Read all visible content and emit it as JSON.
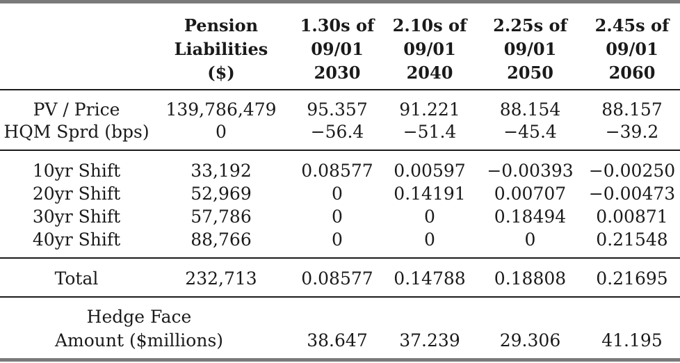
{
  "header": {
    "c1": [
      "Pension",
      "Liabilities",
      "($)"
    ],
    "c2": [
      "1.30s of",
      "09/01",
      "2030"
    ],
    "c3": [
      "2.10s of",
      "09/01",
      "2040"
    ],
    "c4": [
      "2.25s of",
      "09/01",
      "2050"
    ],
    "c5": [
      "2.45s of",
      "09/01",
      "2060"
    ]
  },
  "rows": {
    "pv": [
      "PV / Price",
      "139,786,479",
      "95.357",
      "91.221",
      "88.154",
      "88.157"
    ],
    "hqm": [
      "HQM Sprd (bps)",
      "0",
      "−56.4",
      "−51.4",
      "−45.4",
      "−39.2"
    ],
    "s10": [
      "10yr Shift",
      "33,192",
      "0.08577",
      "0.00597",
      "−0.00393",
      "−0.00250"
    ],
    "s20": [
      "20yr Shift",
      "52,969",
      "0",
      "0.14191",
      "0.00707",
      "−0.00473"
    ],
    "s30": [
      "30yr Shift",
      "57,786",
      "0",
      "0",
      "0.18494",
      "0.00871"
    ],
    "s40": [
      "40yr Shift",
      "88,766",
      "0",
      "0",
      "0",
      "0.21548"
    ],
    "total": [
      "Total",
      "232,713",
      "0.08577",
      "0.14788",
      "0.18808",
      "0.21695"
    ],
    "hedge_label": [
      "Hedge Face",
      "Amount ($millions)"
    ],
    "hedge": [
      "38.647",
      "37.239",
      "29.306",
      "41.195"
    ]
  }
}
